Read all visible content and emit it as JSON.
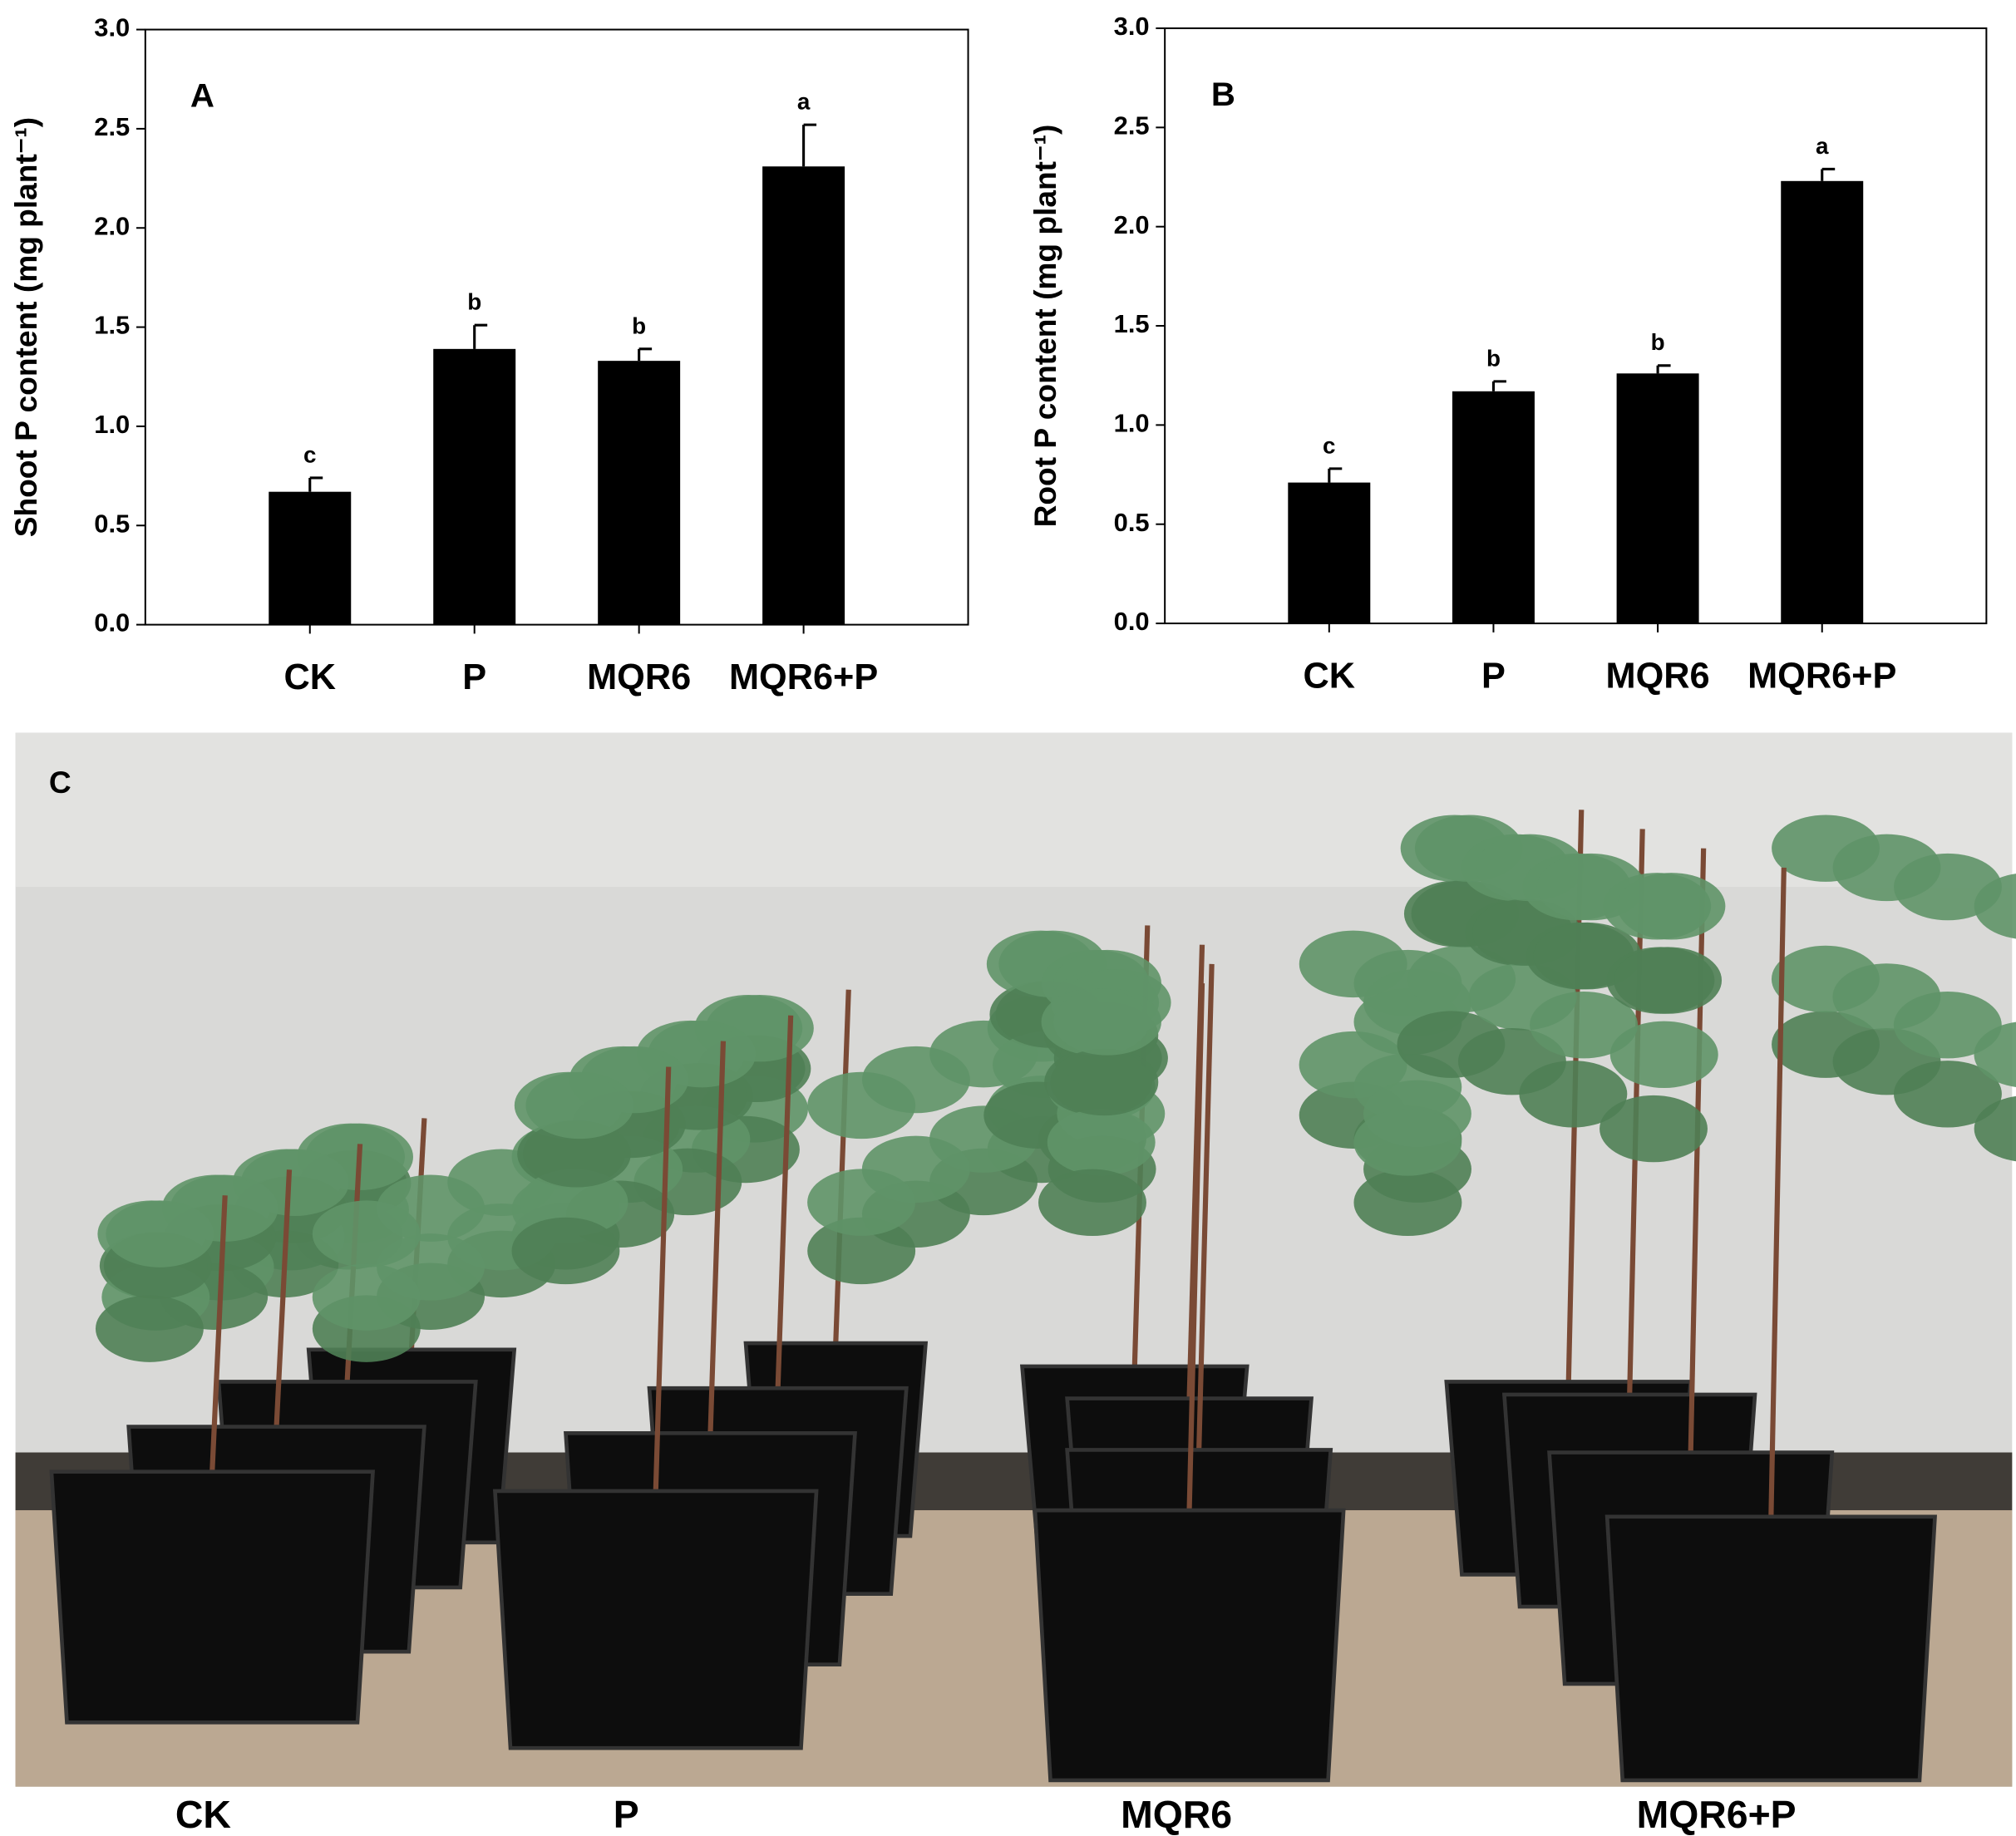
{
  "chart_data": [
    {
      "type": "bar",
      "panel_label": "A",
      "y_label": "Shoot P content (mg plant⁻¹)",
      "categories": [
        "CK",
        "P",
        "MQR6",
        "MQR6+P"
      ],
      "series": [
        {
          "color": "#000000",
          "values": [
            0.67,
            1.39,
            1.33,
            2.31
          ],
          "errors": [
            0.07,
            0.12,
            0.06,
            0.21
          ]
        }
      ],
      "annotations": [
        "c",
        "b",
        "b",
        "a"
      ],
      "ylim": [
        0,
        3
      ],
      "yticks": [
        {
          "value": 0,
          "label": "0.0"
        },
        {
          "value": 0.5,
          "label": "0.5"
        },
        {
          "value": 1,
          "label": "1.0"
        },
        {
          "value": 1.5,
          "label": "1.5"
        },
        {
          "value": 2,
          "label": "2.0"
        },
        {
          "value": 2.5,
          "label": "2.5"
        },
        {
          "value": 3,
          "label": "3.0"
        }
      ],
      "grid": false
    },
    {
      "type": "bar",
      "panel_label": "B",
      "y_label": "Root P content (mg plant⁻¹)",
      "categories": [
        "CK",
        "P",
        "MQR6",
        "MQR6+P"
      ],
      "series": [
        {
          "color": "#000000",
          "values": [
            0.71,
            1.17,
            1.26,
            2.23
          ],
          "errors": [
            0.07,
            0.05,
            0.04,
            0.06
          ]
        }
      ],
      "annotations": [
        "c",
        "b",
        "b",
        "a"
      ],
      "ylim": [
        0,
        3
      ],
      "yticks": [
        {
          "value": 0,
          "label": "0.0"
        },
        {
          "value": 0.5,
          "label": "0.5"
        },
        {
          "value": 1,
          "label": "1.0"
        },
        {
          "value": 1.5,
          "label": "1.5"
        },
        {
          "value": 2,
          "label": "2.0"
        },
        {
          "value": 2.5,
          "label": "2.5"
        },
        {
          "value": 3,
          "label": "3.0"
        }
      ],
      "grid": false
    }
  ],
  "photo": {
    "panel_label": "C",
    "labels": [
      "CK",
      "P",
      "MQR6",
      "MQR6+P"
    ]
  }
}
